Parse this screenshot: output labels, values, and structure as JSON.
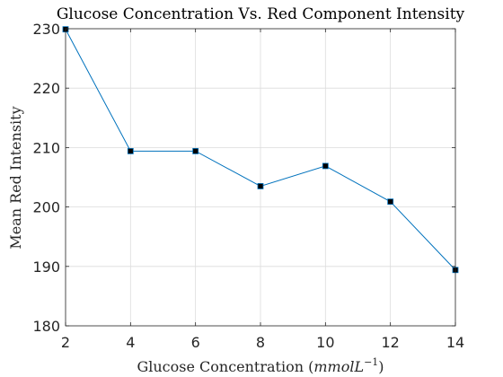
{
  "chart_data": {
    "type": "line",
    "title": "Glucose Concentration Vs. Red Component Intensity",
    "xlabel": {
      "prefix": "Glucose Concentration (",
      "unit": "mmolL",
      "exponent": "−1",
      "suffix": ")"
    },
    "ylabel": "Mean Red Intensity",
    "xlim": [
      2,
      14
    ],
    "ylim": [
      180,
      230
    ],
    "xticks": [
      2,
      4,
      6,
      8,
      10,
      12,
      14
    ],
    "yticks": [
      180,
      190,
      200,
      210,
      220,
      230
    ],
    "grid": true,
    "series": [
      {
        "x": [
          2,
          4,
          6,
          8,
          10,
          12,
          14
        ],
        "values": [
          229.9,
          209.4,
          209.4,
          203.5,
          206.9,
          200.9,
          189.4
        ],
        "line_color": "#0072BD",
        "marker": "square",
        "marker_color": "#000000"
      }
    ]
  }
}
